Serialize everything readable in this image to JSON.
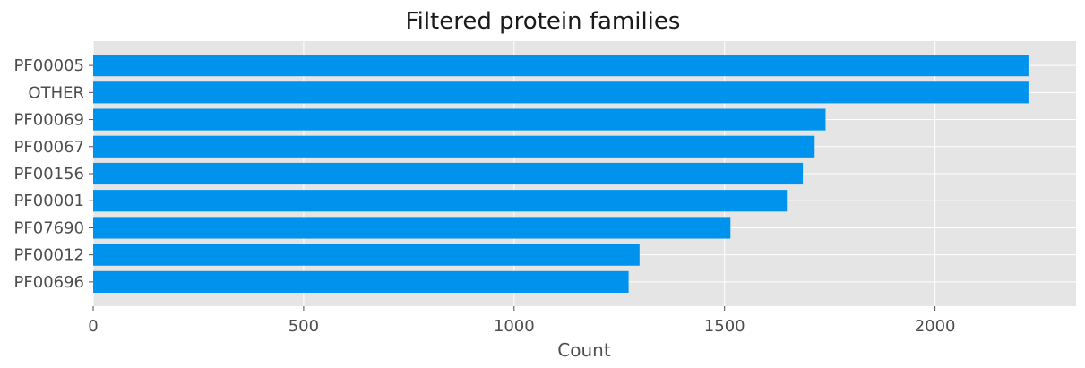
{
  "chart_data": {
    "type": "bar",
    "orientation": "horizontal",
    "title": "Filtered protein families",
    "xlabel": "Count",
    "ylabel": "",
    "categories": [
      "PF00005",
      "OTHER",
      "PF00069",
      "PF00067",
      "PF00156",
      "PF00001",
      "PF07690",
      "PF00012",
      "PF00696"
    ],
    "values": [
      2222,
      2222,
      1740,
      1714,
      1686,
      1648,
      1514,
      1298,
      1272
    ],
    "xlim": [
      0,
      2335
    ],
    "xticks": [
      0,
      500,
      1000,
      1500,
      2000
    ],
    "grid": true,
    "legend": "none",
    "colors": {
      "bar": "#0093ee",
      "plot_background": "#e5e5e5",
      "grid": "#ffffff"
    }
  }
}
